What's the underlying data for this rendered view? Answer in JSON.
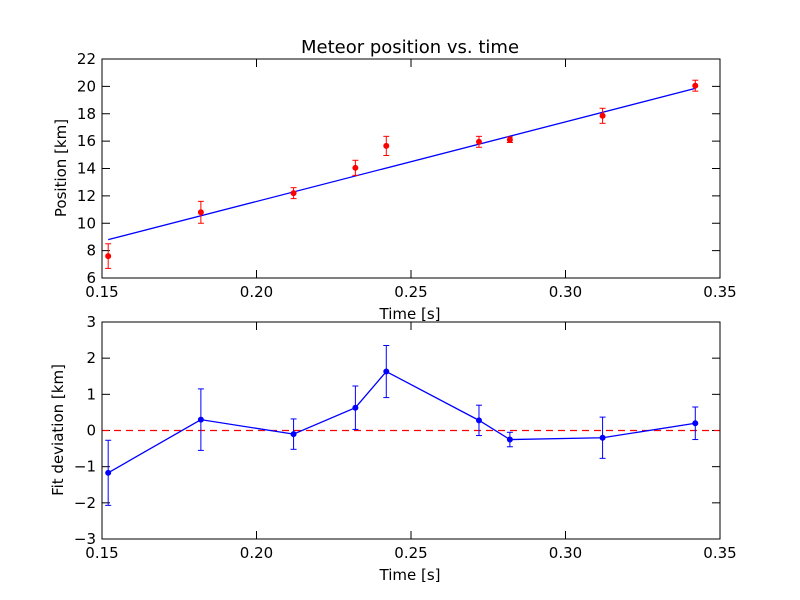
{
  "chart_data": [
    {
      "type": "scatter",
      "title": "Meteor position vs. time",
      "xlabel": "Time [s]",
      "ylabel": "Position [km]",
      "xlim": [
        0.15,
        0.35
      ],
      "ylim": [
        6,
        22
      ],
      "xticks": [
        "0.15",
        "0.20",
        "0.25",
        "0.30",
        "0.35"
      ],
      "yticks": [
        "6",
        "8",
        "10",
        "12",
        "14",
        "16",
        "18",
        "20",
        "22"
      ],
      "grid": false,
      "points": {
        "color": "#ff0000",
        "x": [
          0.152,
          0.182,
          0.212,
          0.232,
          0.242,
          0.272,
          0.282,
          0.312,
          0.342
        ],
        "y": [
          7.6,
          10.8,
          12.2,
          14.05,
          15.65,
          15.95,
          16.1,
          17.85,
          20.05
        ],
        "yerr": [
          0.9,
          0.8,
          0.4,
          0.55,
          0.7,
          0.4,
          0.2,
          0.55,
          0.4
        ]
      },
      "fit_line": {
        "color": "#0000ff",
        "x": [
          0.152,
          0.342
        ],
        "y": [
          8.8,
          19.85
        ]
      }
    },
    {
      "type": "line",
      "title": "",
      "xlabel": "Time [s]",
      "ylabel": "Fit deviation [km]",
      "xlim": [
        0.15,
        0.35
      ],
      "ylim": [
        -3,
        3
      ],
      "xticks": [
        "0.15",
        "0.20",
        "0.25",
        "0.30",
        "0.35"
      ],
      "yticks": [
        "−3",
        "−2",
        "−1",
        "0",
        "1",
        "2",
        "3"
      ],
      "grid": false,
      "series": {
        "color": "#0000ff",
        "x": [
          0.152,
          0.182,
          0.212,
          0.232,
          0.242,
          0.272,
          0.282,
          0.312,
          0.342
        ],
        "y": [
          -1.17,
          0.3,
          -0.1,
          0.63,
          1.63,
          0.28,
          -0.25,
          -0.2,
          0.2
        ],
        "yerr": [
          0.9,
          0.85,
          0.42,
          0.6,
          0.72,
          0.42,
          0.2,
          0.57,
          0.45
        ]
      },
      "reference_line": {
        "color": "#ff0000",
        "style": "dashed",
        "y": 0
      }
    }
  ]
}
